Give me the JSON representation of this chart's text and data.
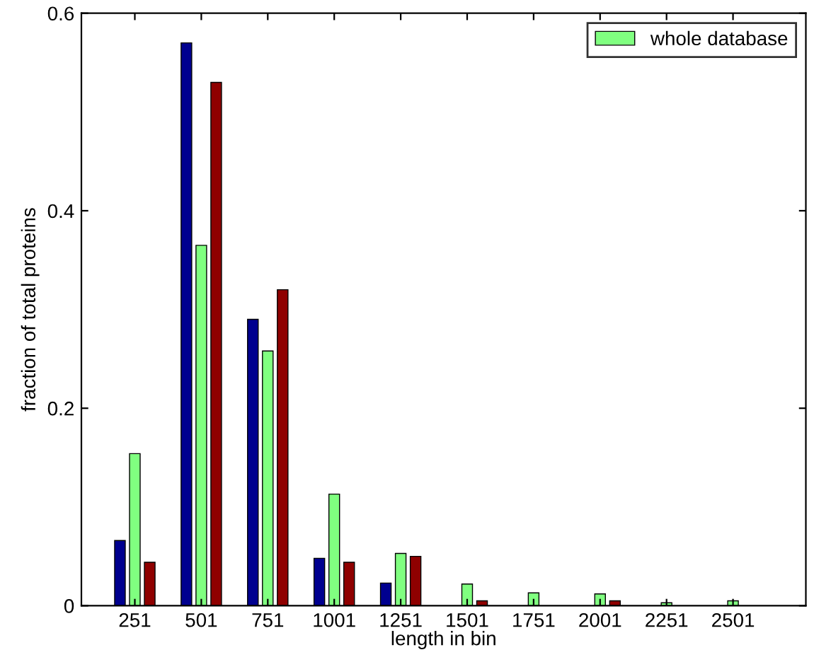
{
  "chart_data": {
    "type": "bar",
    "xlabel": "length in bin",
    "ylabel": "fraction of total proteins",
    "x": [
      251,
      501,
      751,
      1001,
      1251,
      1501,
      1751,
      2001,
      2251,
      2501
    ],
    "xlim": [
      50,
      2775
    ],
    "xticks": [
      251,
      501,
      751,
      1001,
      1251,
      1501,
      1751,
      2001,
      2251,
      2501
    ],
    "ylim": [
      0,
      0.6
    ],
    "yticks": [
      0,
      0.2,
      0.4,
      0.6
    ],
    "grid": false,
    "legend": "top right",
    "series": [
      {
        "color": "#00008f",
        "values": [
          0.066,
          0.57,
          0.29,
          0.048,
          0.023,
          0,
          0,
          0,
          0,
          0
        ]
      },
      {
        "name": "whole database",
        "color": "#80ff80",
        "values": [
          0.154,
          0.365,
          0.258,
          0.113,
          0.053,
          0.022,
          0.013,
          0.012,
          0.003,
          0.005
        ]
      },
      {
        "color": "#8f0000",
        "values": [
          0.044,
          0.53,
          0.32,
          0.044,
          0.05,
          0.005,
          0,
          0.005,
          0,
          0
        ]
      }
    ]
  }
}
